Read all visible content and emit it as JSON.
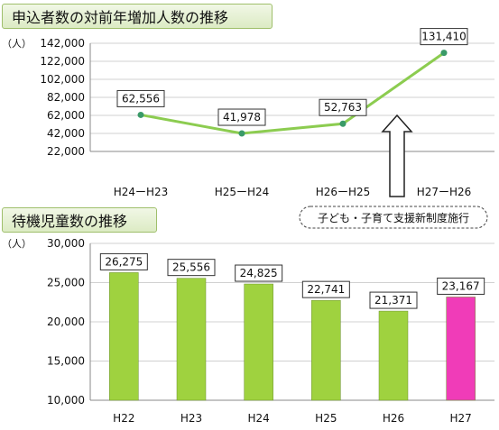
{
  "titles": {
    "top": "申込者数の対前年増加人数の推移",
    "bottom": "待機児童数の推移"
  },
  "units": {
    "top": "（人）",
    "bottom": "（人）"
  },
  "note": {
    "text": "子ども・子育て支援新制度施行"
  },
  "colors": {
    "line": "#8ccc50",
    "line_point": "#3a9a68",
    "bar": "#9fd23f",
    "bar_highlight": "#f03cb8",
    "banner_border": "#9fbf6b",
    "grid": "#d0d0d0"
  },
  "chart_data": [
    {
      "type": "line",
      "title": "申込者数の対前年増加人数の推移",
      "ylabel": "（人）",
      "categories": [
        "H24ーH23",
        "H25ーH24",
        "H26ーH25",
        "H27ーH26"
      ],
      "values": [
        62556,
        41978,
        52763,
        131410
      ],
      "value_labels": [
        "62,556",
        "41,978",
        "52,763",
        "131,410"
      ],
      "yticks": [
        22000,
        42000,
        62000,
        82000,
        102000,
        122000,
        142000
      ],
      "ytick_labels": [
        "22,000",
        "42,000",
        "62,000",
        "82,000",
        "102,000",
        "122,000",
        "142,000"
      ],
      "ylim": [
        22000,
        142000
      ],
      "grid": true
    },
    {
      "type": "bar",
      "title": "待機児童数の推移",
      "ylabel": "（人）",
      "categories": [
        "H22",
        "H23",
        "H24",
        "H25",
        "H26",
        "H27"
      ],
      "values": [
        26275,
        25556,
        24825,
        22741,
        21371,
        23167
      ],
      "value_labels": [
        "26,275",
        "25,556",
        "24,825",
        "22,741",
        "21,371",
        "23,167"
      ],
      "highlight_index": 5,
      "yticks": [
        10000,
        15000,
        20000,
        25000,
        30000
      ],
      "ytick_labels": [
        "10,000",
        "15,000",
        "20,000",
        "25,000",
        "30,000"
      ],
      "ylim": [
        10000,
        30000
      ],
      "grid": true
    }
  ]
}
